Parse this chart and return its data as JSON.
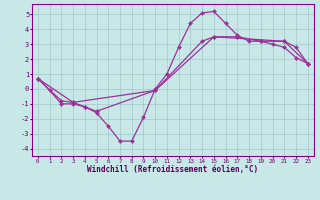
{
  "xlabel": "Windchill (Refroidissement éolien,°C)",
  "bg_color": "#c8e8e8",
  "grid_color": "#a8cccc",
  "line_color": "#993399",
  "xlim": [
    -0.5,
    23.5
  ],
  "ylim": [
    -4.5,
    5.7
  ],
  "xticks": [
    0,
    1,
    2,
    3,
    4,
    5,
    6,
    7,
    8,
    9,
    10,
    11,
    12,
    13,
    14,
    15,
    16,
    17,
    18,
    19,
    20,
    21,
    22,
    23
  ],
  "yticks": [
    -4,
    -3,
    -2,
    -1,
    0,
    1,
    2,
    3,
    4,
    5
  ],
  "series": [
    {
      "x": [
        0,
        1,
        2,
        3,
        4,
        5,
        6,
        7,
        8,
        9,
        10,
        11,
        12,
        13,
        14,
        15,
        16,
        17,
        18,
        19,
        20,
        21,
        22,
        23
      ],
      "y": [
        0.7,
        -0.1,
        -1.0,
        -1.0,
        -1.2,
        -1.6,
        -2.5,
        -3.5,
        -3.5,
        -1.9,
        0.0,
        1.0,
        2.8,
        4.4,
        5.1,
        5.2,
        4.4,
        3.6,
        3.2,
        3.2,
        3.0,
        2.8,
        2.1,
        1.7
      ]
    },
    {
      "x": [
        0,
        2,
        3,
        4,
        5,
        10,
        14,
        15,
        17,
        19,
        21,
        22,
        23
      ],
      "y": [
        0.7,
        -0.8,
        -0.9,
        -1.2,
        -1.5,
        -0.1,
        3.2,
        3.5,
        3.5,
        3.2,
        3.2,
        2.8,
        1.7
      ]
    },
    {
      "x": [
        0,
        3,
        10,
        15,
        21,
        23
      ],
      "y": [
        0.7,
        -0.9,
        -0.1,
        3.5,
        3.2,
        1.7
      ]
    }
  ]
}
